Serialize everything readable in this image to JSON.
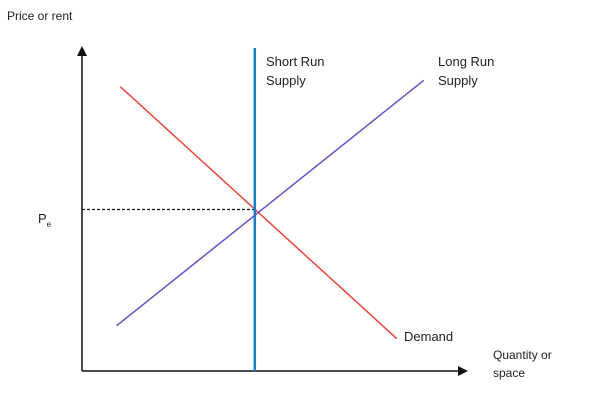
{
  "chart_data": {
    "type": "line",
    "title": "",
    "ylabel": "Price or rent",
    "xlabel": [
      "Quantity or",
      "space"
    ],
    "y_tick": {
      "label": "P",
      "subscript": "e",
      "value": 50
    },
    "xlim": [
      0,
      100
    ],
    "ylim": [
      0,
      100
    ],
    "grid": false,
    "equilibrium": {
      "x": 45,
      "y": 50
    },
    "series": [
      {
        "name": "Demand",
        "label_lines": [
          "Demand"
        ],
        "color": "#e8443a",
        "points": [
          [
            10,
            88
          ],
          [
            82,
            10
          ]
        ]
      },
      {
        "name": "Short Run Supply",
        "label_lines": [
          "Short Run",
          "Supply"
        ],
        "color": "#1a7fc0",
        "points": [
          [
            45,
            100
          ],
          [
            45,
            0
          ]
        ]
      },
      {
        "name": "Long Run Supply",
        "label_lines": [
          "Long Run",
          "Supply"
        ],
        "color": "#6a4fc0",
        "points": [
          [
            9,
            14
          ],
          [
            89,
            90
          ]
        ]
      }
    ]
  }
}
